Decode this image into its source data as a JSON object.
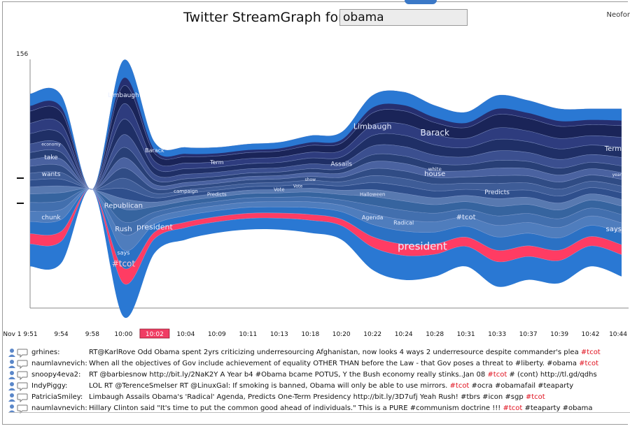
{
  "header": {
    "title": "Twitter StreamGraph for",
    "query": "obama",
    "brand": "Neofor"
  },
  "chart_data": {
    "type": "area",
    "title": "Twitter StreamGraph for obama",
    "y_max_label": "156",
    "ylim": [
      -78,
      78
    ],
    "x_labels": [
      "Nov 1 9:51",
      "9:54",
      "9:58",
      "10:00",
      "10:02",
      "10:04",
      "10:09",
      "10:11",
      "10:13",
      "10:18",
      "10:20",
      "10:22",
      "10:24",
      "10:28",
      "10:31",
      "10:33",
      "10:37",
      "10:39",
      "10:42",
      "10:44"
    ],
    "selected_x": "10:02",
    "top": [
      57,
      56,
      0,
      77,
      28,
      25,
      25,
      27,
      28,
      32,
      34,
      56,
      58,
      50,
      46,
      56,
      53,
      48,
      48,
      48
    ],
    "bottom": [
      -46,
      -44,
      0,
      -76,
      -38,
      -30,
      -26,
      -24,
      -24,
      -26,
      -30,
      -48,
      -54,
      -52,
      -46,
      -58,
      -54,
      -56,
      -46,
      -52
    ],
    "layer_colors": [
      "#2a78d3",
      "#ff3c63",
      "#2b71c4",
      "#4f7dbd",
      "#426fae",
      "#36649f",
      "#5879b0",
      "#2f4f8c",
      "#3e5c97",
      "#304c85",
      "#4a62a0",
      "#283f76",
      "#3b4f8f",
      "#1f2f66",
      "#2e3c7e",
      "#1a2458",
      "#262f70"
    ],
    "word_labels": [
      {
        "text": "Limbaugh",
        "i": 3,
        "v": 55,
        "size": 9
      },
      {
        "text": "economy",
        "i": 0,
        "v": 26,
        "size": 6
      },
      {
        "text": "take",
        "i": 0,
        "v": 18,
        "size": 9
      },
      {
        "text": "wants",
        "i": 0,
        "v": 8,
        "size": 9
      },
      {
        "text": "chunk",
        "i": 0,
        "v": -18,
        "size": 9
      },
      {
        "text": "Republican",
        "i": 3,
        "v": -11,
        "size": 10
      },
      {
        "text": "Rush",
        "i": 3,
        "v": -25,
        "size": 10
      },
      {
        "text": "says",
        "i": 3,
        "v": -39,
        "size": 8
      },
      {
        "text": "#tcot",
        "i": 3,
        "v": -46,
        "size": 12
      },
      {
        "text": "Barack",
        "i": 4,
        "v": 22,
        "size": 8
      },
      {
        "text": "president",
        "i": 4,
        "v": -24,
        "size": 11
      },
      {
        "text": "campaign",
        "i": 5,
        "v": -2,
        "size": 7
      },
      {
        "text": "Term",
        "i": 6,
        "v": 15,
        "size": 8
      },
      {
        "text": "Predicts",
        "i": 6,
        "v": -4,
        "size": 7
      },
      {
        "text": "Vote",
        "i": 8,
        "v": -1,
        "size": 7
      },
      {
        "text": "show",
        "i": 9,
        "v": 5,
        "size": 6
      },
      {
        "text": "Vote",
        "i": 8.6,
        "v": 1,
        "size": 6
      },
      {
        "text": "Assails",
        "i": 10,
        "v": 14,
        "size": 9
      },
      {
        "text": "Halloween",
        "i": 11,
        "v": -4,
        "size": 7
      },
      {
        "text": "Limbaugh",
        "i": 11,
        "v": 36,
        "size": 11
      },
      {
        "text": "Agenda",
        "i": 11,
        "v": -18,
        "size": 8
      },
      {
        "text": "Radical",
        "i": 12,
        "v": -21,
        "size": 8
      },
      {
        "text": "Barack",
        "i": 13,
        "v": 32,
        "size": 12
      },
      {
        "text": "white",
        "i": 13,
        "v": 11,
        "size": 7
      },
      {
        "text": "house",
        "i": 13,
        "v": 8,
        "size": 10
      },
      {
        "text": "president",
        "i": 12.6,
        "v": -36,
        "size": 15
      },
      {
        "text": "#tcot",
        "i": 14,
        "v": -18,
        "size": 10
      },
      {
        "text": "Predicts",
        "i": 15,
        "v": -3,
        "size": 9
      },
      {
        "text": "Term",
        "i": 19,
        "v": 23,
        "size": 10
      },
      {
        "text": "year",
        "i": 19,
        "v": 8,
        "size": 6
      },
      {
        "text": "says",
        "i": 19,
        "v": -25,
        "size": 10
      }
    ]
  },
  "tweets": [
    {
      "user": "grhines:",
      "text": "RT@KarlRove Odd Obama spent 2yrs criticizing underresourcing Afghanistan, now looks 4 ways 2 underresource despite commander's plea ",
      "tags": "#tcot",
      "rest": ""
    },
    {
      "user": "naumlavnevich:",
      "text": "When all the objectives of Gov include achievement of equality OTHER THAN before the Law - that Gov poses a threat to #liberty. #obama ",
      "tags": "#tcot",
      "rest": ""
    },
    {
      "user": "snoopy4eva2:",
      "text": "RT @barbiesnow http://bit.ly/2NaK2Y A Year b4 #Obama bcame POTUS, Y the Bush economy really stinks..Jan 08 ",
      "tags": "#tcot",
      "rest": " # (cont) http://tl.gd/qdhs"
    },
    {
      "user": "IndyPiggy:",
      "text": "LOL RT @TerenceSmelser RT @LinuxGal: If smoking is banned, Obama will only be able to use mirrors. ",
      "tags": "#tcot",
      "rest": " #ocra #obamafail #teaparty"
    },
    {
      "user": "PatriciaSmiley:",
      "text": "Limbaugh Assails Obama's 'Radical' Agenda, Predicts One-Term Presidency http://bit.ly/3D7ufj Yeah Rush! #tbrs #icon #sgp ",
      "tags": "#tcot",
      "rest": ""
    },
    {
      "user": "naumlavnevich:",
      "text": "Hillary Clinton said \"It's time to put the common good ahead of individuals.\" This is a PURE #communism doctrine !!! ",
      "tags": "#tcot",
      "rest": " #teaparty #obama"
    }
  ]
}
